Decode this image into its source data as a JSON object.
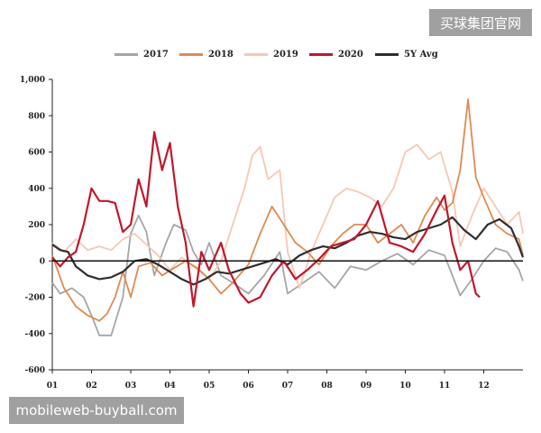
{
  "watermarks": {
    "top": "买球集团官网",
    "bottom": "mobileweb-buyball.com"
  },
  "chart_data": {
    "type": "line",
    "title": "",
    "xlabel": "",
    "ylabel": "",
    "x_ticks": [
      "01",
      "02",
      "03",
      "04",
      "05",
      "06",
      "07",
      "08",
      "09",
      "10",
      "11",
      "12"
    ],
    "y_ticks": [
      "1,000",
      "800",
      "600",
      "400",
      "200",
      "0",
      "-200",
      "-400",
      "-600"
    ],
    "xlim": [
      1,
      13
    ],
    "ylim": [
      -600,
      1000
    ],
    "grid": false,
    "legend_position": "top",
    "series": [
      {
        "name": "2017",
        "color": "#a6a6a6",
        "points": [
          [
            1.0,
            -120
          ],
          [
            1.2,
            -180
          ],
          [
            1.5,
            -150
          ],
          [
            1.8,
            -200
          ],
          [
            2.0,
            -300
          ],
          [
            2.2,
            -410
          ],
          [
            2.5,
            -410
          ],
          [
            2.8,
            -200
          ],
          [
            3.0,
            150
          ],
          [
            3.2,
            250
          ],
          [
            3.4,
            160
          ],
          [
            3.6,
            -80
          ],
          [
            3.9,
            100
          ],
          [
            4.1,
            200
          ],
          [
            4.4,
            170
          ],
          [
            4.6,
            50
          ],
          [
            4.8,
            -20
          ],
          [
            5.0,
            100
          ],
          [
            5.3,
            -80
          ],
          [
            5.6,
            -120
          ],
          [
            6.0,
            -180
          ],
          [
            6.4,
            -80
          ],
          [
            6.8,
            50
          ],
          [
            7.0,
            -180
          ],
          [
            7.4,
            -120
          ],
          [
            7.8,
            -60
          ],
          [
            8.2,
            -150
          ],
          [
            8.6,
            -30
          ],
          [
            9.0,
            -50
          ],
          [
            9.4,
            0
          ],
          [
            9.8,
            40
          ],
          [
            10.2,
            -20
          ],
          [
            10.6,
            60
          ],
          [
            11.0,
            30
          ],
          [
            11.4,
            -190
          ],
          [
            11.7,
            -100
          ],
          [
            12.0,
            0
          ],
          [
            12.3,
            70
          ],
          [
            12.6,
            50
          ],
          [
            12.9,
            -50
          ],
          [
            13.0,
            -110
          ]
        ]
      },
      {
        "name": "2018",
        "color": "#e08a52",
        "points": [
          [
            1.0,
            30
          ],
          [
            1.3,
            -150
          ],
          [
            1.6,
            -250
          ],
          [
            1.9,
            -300
          ],
          [
            2.2,
            -330
          ],
          [
            2.4,
            -290
          ],
          [
            2.6,
            -200
          ],
          [
            2.8,
            -60
          ],
          [
            3.0,
            -200
          ],
          [
            3.2,
            -30
          ],
          [
            3.5,
            -10
          ],
          [
            3.8,
            -80
          ],
          [
            4.1,
            -40
          ],
          [
            4.4,
            0
          ],
          [
            4.7,
            -40
          ],
          [
            5.0,
            -100
          ],
          [
            5.3,
            -180
          ],
          [
            5.6,
            -120
          ],
          [
            6.0,
            -20
          ],
          [
            6.3,
            150
          ],
          [
            6.6,
            300
          ],
          [
            6.9,
            200
          ],
          [
            7.2,
            100
          ],
          [
            7.5,
            50
          ],
          [
            7.8,
            -20
          ],
          [
            8.1,
            80
          ],
          [
            8.4,
            150
          ],
          [
            8.7,
            200
          ],
          [
            9.0,
            200
          ],
          [
            9.3,
            100
          ],
          [
            9.6,
            150
          ],
          [
            9.9,
            200
          ],
          [
            10.2,
            100
          ],
          [
            10.5,
            250
          ],
          [
            10.8,
            350
          ],
          [
            11.0,
            280
          ],
          [
            11.2,
            320
          ],
          [
            11.4,
            500
          ],
          [
            11.6,
            890
          ],
          [
            11.8,
            460
          ],
          [
            12.0,
            350
          ],
          [
            12.3,
            200
          ],
          [
            12.6,
            150
          ],
          [
            12.9,
            120
          ],
          [
            13.0,
            30
          ]
        ]
      },
      {
        "name": "2019",
        "color": "#f5c9b3",
        "points": [
          [
            1.0,
            100
          ],
          [
            1.3,
            50
          ],
          [
            1.6,
            120
          ],
          [
            1.9,
            60
          ],
          [
            2.2,
            80
          ],
          [
            2.5,
            60
          ],
          [
            2.8,
            120
          ],
          [
            3.1,
            150
          ],
          [
            3.4,
            90
          ],
          [
            3.7,
            30
          ],
          [
            4.0,
            -50
          ],
          [
            4.3,
            20
          ],
          [
            4.6,
            -30
          ],
          [
            5.0,
            -100
          ],
          [
            5.3,
            0
          ],
          [
            5.6,
            200
          ],
          [
            5.9,
            400
          ],
          [
            6.1,
            580
          ],
          [
            6.3,
            630
          ],
          [
            6.5,
            450
          ],
          [
            6.8,
            500
          ],
          [
            7.0,
            50
          ],
          [
            7.3,
            -150
          ],
          [
            7.6,
            50
          ],
          [
            7.9,
            200
          ],
          [
            8.2,
            350
          ],
          [
            8.5,
            400
          ],
          [
            8.8,
            380
          ],
          [
            9.1,
            350
          ],
          [
            9.4,
            300
          ],
          [
            9.7,
            400
          ],
          [
            10.0,
            600
          ],
          [
            10.3,
            640
          ],
          [
            10.6,
            560
          ],
          [
            10.9,
            600
          ],
          [
            11.2,
            380
          ],
          [
            11.4,
            80
          ],
          [
            11.7,
            250
          ],
          [
            12.0,
            400
          ],
          [
            12.3,
            300
          ],
          [
            12.6,
            200
          ],
          [
            12.9,
            270
          ],
          [
            13.0,
            150
          ]
        ]
      },
      {
        "name": "2020",
        "color": "#c0172c",
        "points": [
          [
            1.0,
            20
          ],
          [
            1.2,
            -30
          ],
          [
            1.4,
            20
          ],
          [
            1.6,
            50
          ],
          [
            1.8,
            200
          ],
          [
            2.0,
            400
          ],
          [
            2.2,
            330
          ],
          [
            2.4,
            330
          ],
          [
            2.6,
            320
          ],
          [
            2.8,
            160
          ],
          [
            3.0,
            200
          ],
          [
            3.2,
            450
          ],
          [
            3.4,
            300
          ],
          [
            3.6,
            710
          ],
          [
            3.8,
            500
          ],
          [
            4.0,
            650
          ],
          [
            4.2,
            300
          ],
          [
            4.4,
            100
          ],
          [
            4.6,
            -250
          ],
          [
            4.8,
            50
          ],
          [
            5.0,
            -50
          ],
          [
            5.3,
            100
          ],
          [
            5.5,
            -50
          ],
          [
            5.8,
            -180
          ],
          [
            6.0,
            -230
          ],
          [
            6.3,
            -200
          ],
          [
            6.6,
            -80
          ],
          [
            6.9,
            0
          ],
          [
            7.2,
            -100
          ],
          [
            7.5,
            -50
          ],
          [
            7.8,
            10
          ],
          [
            8.1,
            80
          ],
          [
            8.4,
            100
          ],
          [
            8.7,
            120
          ],
          [
            9.0,
            200
          ],
          [
            9.3,
            330
          ],
          [
            9.6,
            100
          ],
          [
            9.9,
            80
          ],
          [
            10.2,
            50
          ],
          [
            10.5,
            150
          ],
          [
            10.8,
            280
          ],
          [
            11.0,
            360
          ],
          [
            11.2,
            100
          ],
          [
            11.4,
            -50
          ],
          [
            11.6,
            0
          ],
          [
            11.8,
            -180
          ],
          [
            11.9,
            -200
          ]
        ]
      },
      {
        "name": "5Y Avg",
        "color": "#2e2e2e",
        "points": [
          [
            1.0,
            90
          ],
          [
            1.2,
            60
          ],
          [
            1.4,
            50
          ],
          [
            1.6,
            -30
          ],
          [
            1.9,
            -80
          ],
          [
            2.2,
            -100
          ],
          [
            2.5,
            -90
          ],
          [
            2.8,
            -60
          ],
          [
            3.1,
            0
          ],
          [
            3.4,
            10
          ],
          [
            3.7,
            -20
          ],
          [
            4.0,
            -60
          ],
          [
            4.3,
            -100
          ],
          [
            4.6,
            -130
          ],
          [
            4.9,
            -100
          ],
          [
            5.2,
            -60
          ],
          [
            5.5,
            -70
          ],
          [
            5.8,
            -50
          ],
          [
            6.1,
            -30
          ],
          [
            6.4,
            -10
          ],
          [
            6.7,
            10
          ],
          [
            7.0,
            -20
          ],
          [
            7.3,
            30
          ],
          [
            7.6,
            60
          ],
          [
            7.9,
            80
          ],
          [
            8.2,
            70
          ],
          [
            8.5,
            100
          ],
          [
            8.8,
            140
          ],
          [
            9.1,
            160
          ],
          [
            9.4,
            150
          ],
          [
            9.7,
            130
          ],
          [
            10.0,
            120
          ],
          [
            10.3,
            160
          ],
          [
            10.6,
            180
          ],
          [
            10.9,
            200
          ],
          [
            11.2,
            240
          ],
          [
            11.5,
            170
          ],
          [
            11.8,
            120
          ],
          [
            12.1,
            200
          ],
          [
            12.4,
            230
          ],
          [
            12.7,
            180
          ],
          [
            12.9,
            80
          ],
          [
            13.0,
            20
          ]
        ]
      }
    ]
  }
}
